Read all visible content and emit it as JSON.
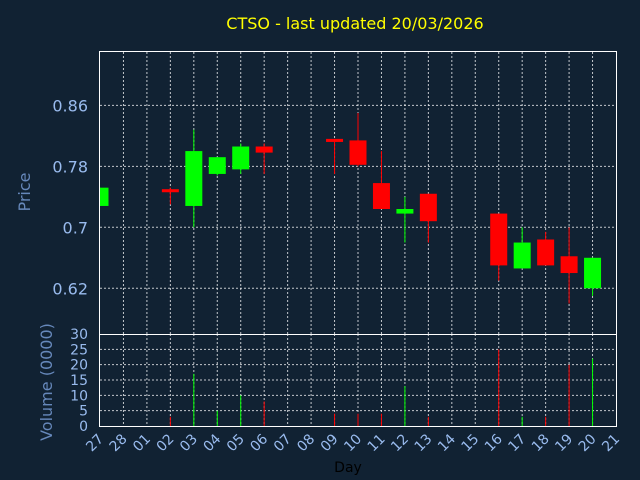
{
  "chart_data": {
    "type": "candlestick",
    "title": "CTSO - last updated 20/03/2026",
    "xlabel": "Day",
    "ylabel_price": "Price",
    "ylabel_volume": "Volume (0000)",
    "x_ticks": [
      "27",
      "28",
      "01",
      "02",
      "03",
      "04",
      "05",
      "06",
      "07",
      "08",
      "09",
      "10",
      "11",
      "12",
      "13",
      "14",
      "15",
      "16",
      "17",
      "18",
      "19",
      "20",
      "21"
    ],
    "price_ylim": [
      0.56,
      0.93
    ],
    "price_yticks": [
      0.62,
      0.7,
      0.78,
      0.86
    ],
    "price_ytick_labels": [
      "0.62",
      "0.7",
      "0.78",
      "0.86"
    ],
    "volume_ylim": [
      0,
      30
    ],
    "volume_yticks": [
      0,
      5,
      10,
      15,
      20,
      25,
      30
    ],
    "volume_ytick_labels": [
      "0",
      "5",
      "10",
      "15",
      "20",
      "25",
      "30"
    ],
    "colors": {
      "up": "#00ff00",
      "down": "#ff0000",
      "background": "#112233",
      "title": "#ffff00"
    },
    "candles": [
      {
        "day": "27",
        "open": 0.728,
        "high": 0.752,
        "low": 0.728,
        "close": 0.752,
        "volume": 0.0
      },
      {
        "day": "02",
        "open": 0.75,
        "high": 0.752,
        "low": 0.73,
        "close": 0.746,
        "volume": 3.0
      },
      {
        "day": "03",
        "open": 0.728,
        "high": 0.828,
        "low": 0.7,
        "close": 0.8,
        "volume": 17.0
      },
      {
        "day": "04",
        "open": 0.77,
        "high": 0.792,
        "low": 0.768,
        "close": 0.792,
        "volume": 5.0
      },
      {
        "day": "05",
        "open": 0.776,
        "high": 0.81,
        "low": 0.77,
        "close": 0.806,
        "volume": 10.0
      },
      {
        "day": "06",
        "open": 0.806,
        "high": 0.81,
        "low": 0.77,
        "close": 0.798,
        "volume": 8.0
      },
      {
        "day": "09",
        "open": 0.816,
        "high": 0.816,
        "low": 0.77,
        "close": 0.812,
        "volume": 4.0
      },
      {
        "day": "10",
        "open": 0.814,
        "high": 0.85,
        "low": 0.78,
        "close": 0.782,
        "volume": 4.0
      },
      {
        "day": "11",
        "open": 0.758,
        "high": 0.8,
        "low": 0.724,
        "close": 0.724,
        "volume": 4.0
      },
      {
        "day": "12",
        "open": 0.718,
        "high": 0.74,
        "low": 0.68,
        "close": 0.724,
        "volume": 13.0
      },
      {
        "day": "13",
        "open": 0.744,
        "high": 0.744,
        "low": 0.68,
        "close": 0.708,
        "volume": 3.0
      },
      {
        "day": "16",
        "open": 0.718,
        "high": 0.718,
        "low": 0.63,
        "close": 0.65,
        "volume": 25.0
      },
      {
        "day": "17",
        "open": 0.646,
        "high": 0.7,
        "low": 0.646,
        "close": 0.68,
        "volume": 3.0
      },
      {
        "day": "18",
        "open": 0.684,
        "high": 0.694,
        "low": 0.65,
        "close": 0.65,
        "volume": 3.0
      },
      {
        "day": "19",
        "open": 0.662,
        "high": 0.7,
        "low": 0.6,
        "close": 0.64,
        "volume": 20.0
      },
      {
        "day": "20",
        "open": 0.62,
        "high": 0.66,
        "low": 0.61,
        "close": 0.66,
        "volume": 22.0
      }
    ]
  }
}
